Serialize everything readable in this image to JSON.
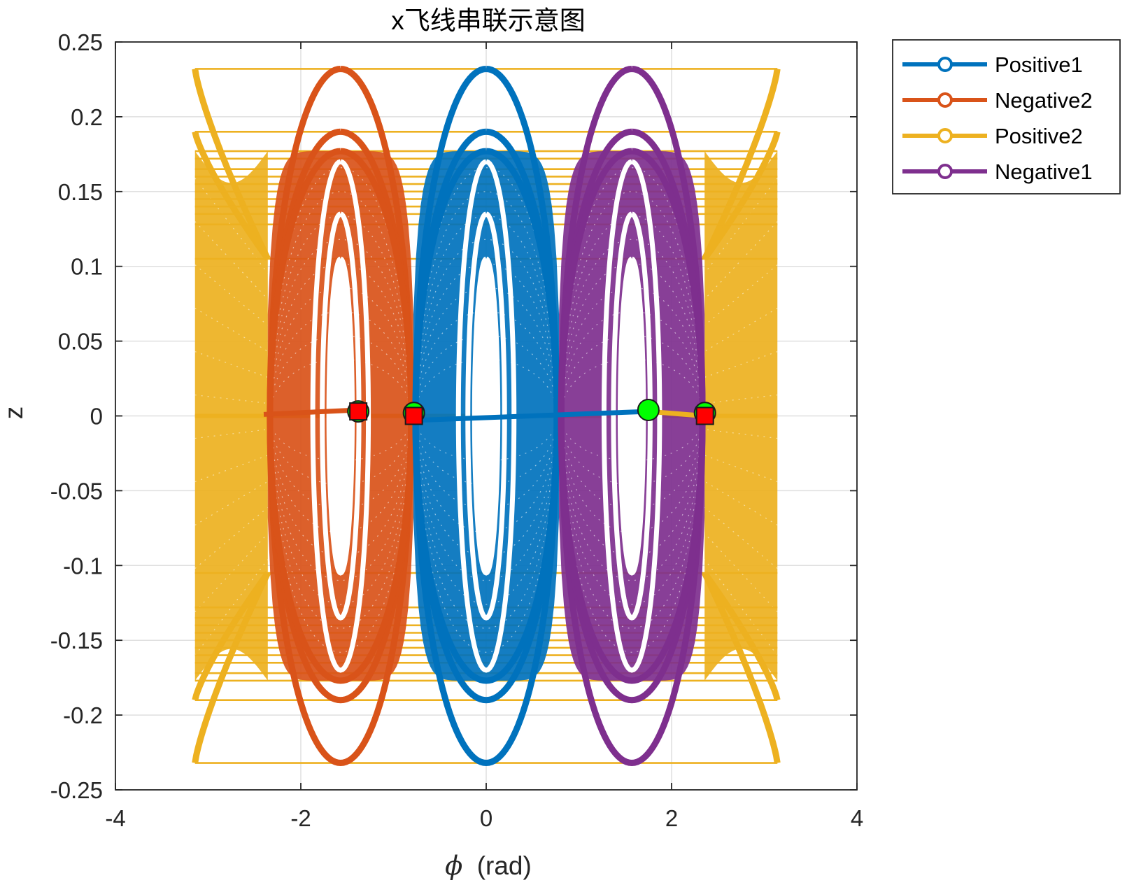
{
  "chart_data": {
    "type": "line",
    "title": "x飞线串联示意图",
    "xlabel_symbol": "ϕ",
    "xlabel_unit": "(rad)",
    "ylabel": "z",
    "xlim": [
      -4,
      4
    ],
    "ylim": [
      -0.25,
      0.25
    ],
    "xticks": [
      -4,
      -2,
      0,
      2,
      4
    ],
    "xtick_labels": [
      "-4",
      "-2",
      "0",
      "2",
      "4"
    ],
    "yticks": [
      -0.25,
      -0.2,
      -0.15,
      -0.1,
      -0.05,
      0,
      0.05,
      0.1,
      0.15,
      0.2,
      0.25
    ],
    "ytick_labels": [
      "-0.25",
      "-0.2",
      "-0.15",
      "-0.1",
      "-0.05",
      "0",
      "0.05",
      "0.1",
      "0.15",
      "0.2",
      "0.25"
    ],
    "grid": true,
    "legend_position": "outside-top-right",
    "series": [
      {
        "name": "Positive1",
        "color": "#0072BD",
        "center": 0.0,
        "span": [
          -0.785,
          0.785
        ],
        "amplitudes": [
          0.232,
          0.19,
          0.177,
          0.165,
          0.155,
          0.145,
          0.135,
          0.125,
          0.115,
          0.105
        ]
      },
      {
        "name": "Negative2",
        "color": "#D95319",
        "center": -1.571,
        "span": [
          -2.356,
          -0.785
        ],
        "amplitudes": [
          0.232,
          0.19,
          0.177,
          0.165,
          0.155,
          0.145,
          0.135,
          0.125,
          0.115,
          0.105
        ]
      },
      {
        "name": "Positive2",
        "color": "#EDB120",
        "center": 3.1416,
        "span": [
          -3.1416,
          -2.356,
          2.356,
          3.1416
        ],
        "amplitudes": [
          0.232,
          0.19,
          0.177,
          0.165,
          0.155,
          0.145,
          0.135,
          0.125,
          0.115,
          0.105
        ]
      },
      {
        "name": "Negative1",
        "color": "#7E2F8E",
        "center": 1.571,
        "span": [
          0.785,
          2.356
        ],
        "amplitudes": [
          0.232,
          0.19,
          0.177,
          0.165,
          0.155,
          0.145,
          0.135,
          0.125,
          0.115,
          0.105
        ]
      }
    ],
    "connector_lines": [
      {
        "color": "#0072BD",
        "from": [
          -0.78,
          -0.003
        ],
        "to": [
          1.75,
          0.003
        ]
      },
      {
        "color": "#D95319",
        "from": [
          -2.4,
          0.001
        ],
        "to": [
          -1.38,
          0.004
        ]
      },
      {
        "color": "#EDB120",
        "from": [
          1.75,
          0.003
        ],
        "to": [
          2.35,
          0.0
        ]
      }
    ],
    "start_markers": [
      {
        "x": -1.38,
        "y": 0.003,
        "color": "#00FF00"
      },
      {
        "x": -0.78,
        "y": 0.002,
        "color": "#00FF00"
      },
      {
        "x": 1.75,
        "y": 0.004,
        "color": "#00FF00"
      },
      {
        "x": 2.36,
        "y": 0.002,
        "color": "#00FF00"
      }
    ],
    "end_markers": [
      {
        "x": -1.38,
        "y": 0.003,
        "color": "#FF0000"
      },
      {
        "x": -0.78,
        "y": 0.0,
        "color": "#FF0000"
      },
      {
        "x": 2.36,
        "y": 0.0,
        "color": "#FF0000"
      }
    ]
  }
}
